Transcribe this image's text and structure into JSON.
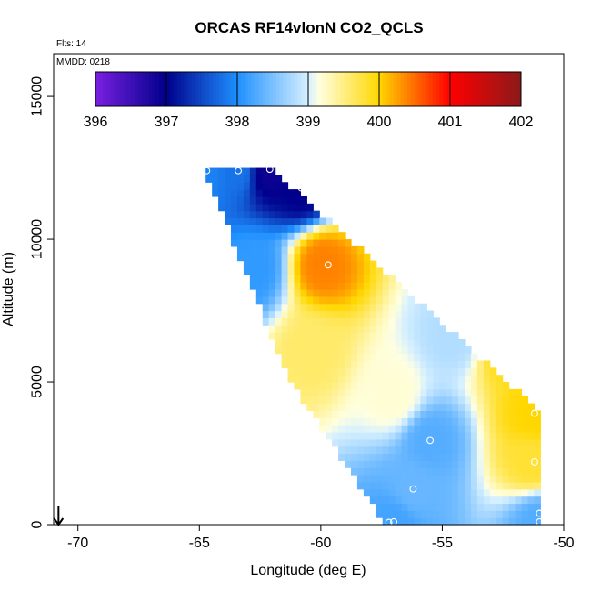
{
  "chart_data": {
    "type": "heatmap",
    "title": "ORCAS RF14vlonN CO2_QCLS",
    "annotations": {
      "flights": "Flts: 14",
      "date": "MMDD: 0218"
    },
    "xlabel": "Longitude (deg E)",
    "ylabel": "Altitude (m)",
    "xlim": [
      -71,
      -50
    ],
    "ylim": [
      0,
      16500
    ],
    "x_ticks": [
      -70,
      -65,
      -60,
      -55,
      -50
    ],
    "x_tick_labels": [
      "-70",
      "-65",
      "-60",
      "-55",
      "-50"
    ],
    "y_ticks": [
      0,
      5000,
      10000,
      15000
    ],
    "y_tick_labels": [
      "0",
      "5000",
      "10000",
      "15000"
    ],
    "colorbar": {
      "min": 396,
      "max": 402,
      "ticks": [
        396,
        397,
        398,
        399,
        400,
        401,
        402
      ],
      "tick_labels": [
        "396",
        "397",
        "398",
        "399",
        "400",
        "401",
        "402"
      ],
      "colors": [
        "#7a1fe0",
        "#00008b",
        "#1e90ff",
        "#d6f0ff",
        "#ffffe0",
        "#ffd700",
        "#ff0000",
        "#8b1a1a"
      ],
      "color_positions": [
        0,
        1,
        2,
        3,
        3.15,
        4,
        5,
        6
      ]
    },
    "domain_polygon": [
      [
        -64.8,
        12500
      ],
      [
        -62.1,
        12500
      ],
      [
        -51.0,
        4000
      ],
      [
        -51.0,
        0
      ],
      [
        -57.3,
        0
      ],
      [
        -61.4,
        5200
      ],
      [
        -64.8,
        12500
      ]
    ],
    "control_points": [
      {
        "lon": -64.7,
        "alt": 12400,
        "co2": 397.9
      },
      {
        "lon": -63.5,
        "alt": 12450,
        "co2": 397.8
      },
      {
        "lon": -62.1,
        "alt": 12400,
        "co2": 396.9
      },
      {
        "lon": -60.8,
        "alt": 11800,
        "co2": 397.0
      },
      {
        "lon": -59.9,
        "alt": 9150,
        "co2": 400.4
      },
      {
        "lon": -62.8,
        "alt": 9000,
        "co2": 398.1
      },
      {
        "lon": -54.5,
        "alt": 6600,
        "co2": 398.8
      },
      {
        "lon": -52.3,
        "alt": 6100,
        "co2": 399.9
      },
      {
        "lon": -51.2,
        "alt": 3900,
        "co2": 400.0
      },
      {
        "lon": -55.5,
        "alt": 2950,
        "co2": 398.3
      },
      {
        "lon": -51.3,
        "alt": 2200,
        "co2": 399.8
      },
      {
        "lon": -56.2,
        "alt": 1250,
        "co2": 398.4
      },
      {
        "lon": -57.0,
        "alt": 100,
        "co2": 398.2
      },
      {
        "lon": -51.0,
        "alt": 100,
        "co2": 398.3
      },
      {
        "lon": -60.4,
        "alt": 6100,
        "co2": 399.6
      },
      {
        "lon": -57.0,
        "alt": 4500,
        "co2": 399.2
      }
    ],
    "observation_markers": [
      {
        "lon": -64.7,
        "alt": 12400
      },
      {
        "lon": -63.4,
        "alt": 12400
      },
      {
        "lon": -62.1,
        "alt": 12450
      },
      {
        "lon": -60.8,
        "alt": 11800
      },
      {
        "lon": -59.7,
        "alt": 9100
      },
      {
        "lon": -52.3,
        "alt": 6100
      },
      {
        "lon": -51.2,
        "alt": 3900
      },
      {
        "lon": -55.5,
        "alt": 2950
      },
      {
        "lon": -51.2,
        "alt": 2200
      },
      {
        "lon": -56.2,
        "alt": 1250
      },
      {
        "lon": -57.2,
        "alt": 80
      },
      {
        "lon": -57.0,
        "alt": 100
      },
      {
        "lon": -51.0,
        "alt": 100
      },
      {
        "lon": -51.0,
        "alt": 400
      }
    ],
    "arrow_marker": {
      "lon": -70.8,
      "alt": 0,
      "direction": "down"
    }
  }
}
